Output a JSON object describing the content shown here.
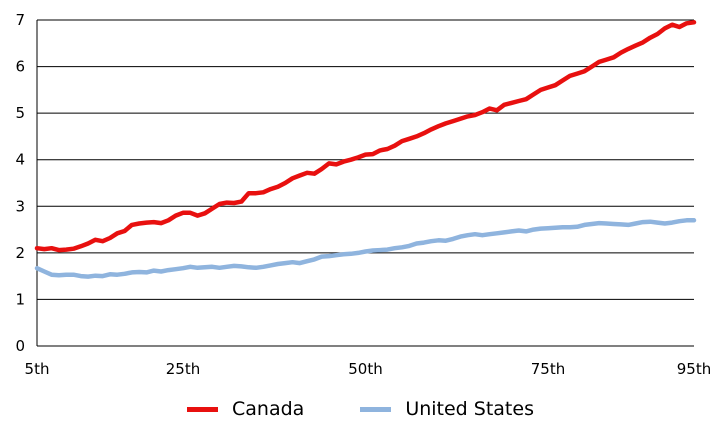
{
  "chart_data": {
    "type": "line",
    "title": "",
    "xlabel": "",
    "ylabel": "",
    "x_ticks": [
      "5th",
      "25th",
      "50th",
      "75th",
      "95th"
    ],
    "x": [
      5,
      6,
      7,
      8,
      9,
      10,
      11,
      12,
      13,
      14,
      15,
      16,
      17,
      18,
      19,
      20,
      21,
      22,
      23,
      24,
      25,
      26,
      27,
      28,
      29,
      30,
      31,
      32,
      33,
      34,
      35,
      36,
      37,
      38,
      39,
      40,
      41,
      42,
      43,
      44,
      45,
      46,
      47,
      48,
      49,
      50,
      51,
      52,
      53,
      54,
      55,
      56,
      57,
      58,
      59,
      60,
      61,
      62,
      63,
      64,
      65,
      66,
      67,
      68,
      69,
      70,
      71,
      72,
      73,
      74,
      75,
      76,
      77,
      78,
      79,
      80,
      81,
      82,
      83,
      84,
      85,
      86,
      87,
      88,
      89,
      90,
      91,
      92,
      93,
      94,
      95
    ],
    "ylim": [
      0,
      7
    ],
    "y_ticks": [
      0,
      1,
      2,
      3,
      4,
      5,
      6,
      7
    ],
    "grid": "horizontal",
    "legend": "bottom",
    "series": [
      {
        "name": "Canada",
        "color": "#e8100f",
        "values": [
          2.1,
          2.08,
          2.1,
          2.06,
          2.07,
          2.09,
          2.14,
          2.2,
          2.28,
          2.25,
          2.32,
          2.42,
          2.47,
          2.6,
          2.63,
          2.65,
          2.66,
          2.64,
          2.7,
          2.8,
          2.86,
          2.86,
          2.8,
          2.85,
          2.95,
          3.05,
          3.08,
          3.07,
          3.1,
          3.28,
          3.28,
          3.3,
          3.37,
          3.42,
          3.5,
          3.6,
          3.66,
          3.72,
          3.7,
          3.8,
          3.92,
          3.9,
          3.96,
          4.0,
          4.05,
          4.11,
          4.12,
          4.2,
          4.23,
          4.3,
          4.4,
          4.45,
          4.5,
          4.57,
          4.65,
          4.72,
          4.78,
          4.83,
          4.88,
          4.93,
          4.96,
          5.02,
          5.1,
          5.06,
          5.18,
          5.22,
          5.26,
          5.3,
          5.4,
          5.5,
          5.55,
          5.6,
          5.7,
          5.8,
          5.85,
          5.9,
          6.0,
          6.1,
          6.15,
          6.2,
          6.3,
          6.38,
          6.45,
          6.52,
          6.62,
          6.7,
          6.82,
          6.9,
          6.85,
          6.93,
          6.95
        ]
      },
      {
        "name": "United States",
        "color": "#8fb4de",
        "values": [
          1.67,
          1.6,
          1.53,
          1.52,
          1.53,
          1.53,
          1.5,
          1.49,
          1.51,
          1.5,
          1.54,
          1.53,
          1.55,
          1.58,
          1.59,
          1.58,
          1.62,
          1.6,
          1.63,
          1.65,
          1.67,
          1.7,
          1.68,
          1.69,
          1.7,
          1.68,
          1.7,
          1.72,
          1.71,
          1.69,
          1.68,
          1.7,
          1.73,
          1.76,
          1.78,
          1.8,
          1.78,
          1.82,
          1.86,
          1.92,
          1.93,
          1.95,
          1.97,
          1.98,
          2.0,
          2.03,
          2.05,
          2.06,
          2.07,
          2.1,
          2.12,
          2.15,
          2.2,
          2.22,
          2.25,
          2.27,
          2.26,
          2.3,
          2.35,
          2.38,
          2.4,
          2.38,
          2.4,
          2.42,
          2.44,
          2.46,
          2.48,
          2.46,
          2.5,
          2.52,
          2.53,
          2.54,
          2.55,
          2.55,
          2.56,
          2.6,
          2.62,
          2.64,
          2.63,
          2.62,
          2.61,
          2.6,
          2.63,
          2.66,
          2.67,
          2.65,
          2.63,
          2.65,
          2.68,
          2.7,
          2.7
        ]
      }
    ]
  }
}
